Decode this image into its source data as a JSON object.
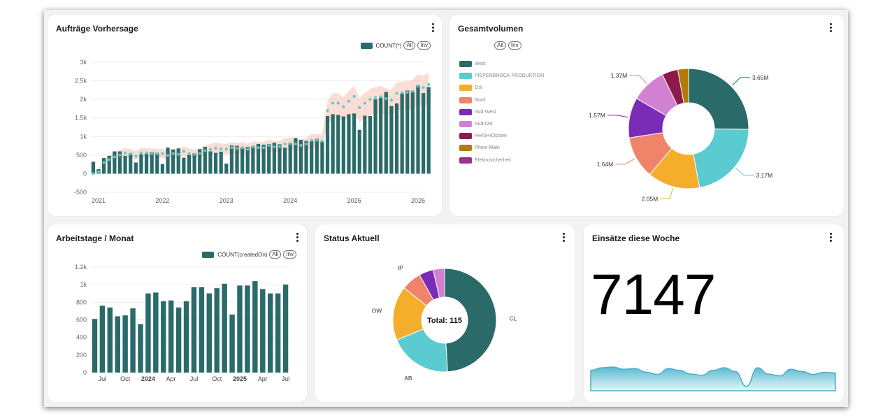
{
  "cards": {
    "forecast": {
      "title": "Aufträge Vorhersage",
      "legend": {
        "series_label": "COUNT(*)",
        "all_label": "All",
        "inv_label": "Inv"
      }
    },
    "volume": {
      "title": "Gesamtvolumen",
      "legend": {
        "all_label": "All",
        "inv_label": "Inv",
        "items": [
          {
            "label": "West",
            "color": "#2a6b6a"
          },
          {
            "label": "PIEPENBROCK PRODUKTION",
            "color": "#5acbd0"
          },
          {
            "label": "Ost",
            "color": "#f4ae2b"
          },
          {
            "label": "Nord",
            "color": "#ef846b"
          },
          {
            "label": "Süd-West",
            "color": "#7b2cb6"
          },
          {
            "label": "Süd-Ost",
            "color": "#d280d2"
          },
          {
            "label": "HH/SH/Ostsee",
            "color": "#8c1b4a"
          },
          {
            "label": "Rhein-Main",
            "color": "#b37a07"
          },
          {
            "label": "Elektrosicherheit",
            "color": "#9b2f8c"
          }
        ]
      }
    },
    "workdays": {
      "title": "Arbeitstage / Monat",
      "legend": {
        "series_label": "COUNT(createdOn)",
        "all_label": "All",
        "inv_label": "Inv"
      }
    },
    "status": {
      "title": "Status Aktuell",
      "center_label": "Total: 115"
    },
    "week": {
      "title": "Einsätze diese Woche",
      "value": "7147",
      "trend": [
        0.55,
        0.62,
        0.64,
        0.58,
        0.6,
        0.5,
        0.44,
        0.6,
        0.55,
        0.45,
        0.42,
        0.55,
        0.62,
        0.52,
        0.12,
        0.62,
        0.45,
        0.4,
        0.58,
        0.52,
        0.44,
        0.5,
        0.48
      ]
    }
  },
  "chart_data": [
    {
      "type": "bar",
      "name": "Aufträge Vorhersage",
      "ylim": [
        -500,
        3000
      ],
      "y_ticks": [
        "-500",
        "0",
        "500",
        "1k",
        "1.5k",
        "2k",
        "2.5k",
        "3k"
      ],
      "x_ticks": [
        "2021",
        "2022",
        "2023",
        "2024",
        "2025",
        "2026"
      ],
      "x_range": [
        2021,
        2026
      ],
      "series": [
        {
          "name": "COUNT(*)",
          "color": "#2a6b6a",
          "x_start": "2020-12",
          "x_step_months": 1,
          "values": [
            320,
            120,
            420,
            480,
            600,
            600,
            480,
            550,
            300,
            520,
            540,
            580,
            560,
            260,
            700,
            650,
            680,
            430,
            500,
            550,
            660,
            720,
            600,
            560,
            590,
            270,
            760,
            750,
            700,
            720,
            740,
            800,
            780,
            800,
            830,
            790,
            700,
            820,
            960,
            910,
            880,
            880,
            940,
            860,
            1550,
            1600,
            1580,
            1540,
            1600,
            1620,
            1180,
            1560,
            1550,
            2000,
            2050,
            2200,
            1820,
            1890,
            2160,
            2240,
            2210,
            2380,
            2170,
            2330
          ]
        },
        {
          "name": "Forecast",
          "color": "#5acbd0",
          "x_start": "2020-12",
          "x_step_months": 1,
          "values": [
            0,
            50,
            300,
            380,
            450,
            500,
            550,
            530,
            470,
            560,
            560,
            540,
            540,
            540,
            490,
            540,
            520,
            600,
            540,
            520,
            540,
            620,
            650,
            690,
            660,
            660,
            700,
            680,
            700,
            660,
            720,
            700,
            700,
            760,
            720,
            730,
            800,
            810,
            800,
            760,
            800,
            900,
            900,
            880,
            1700,
            1900,
            1900,
            1800,
            1950,
            2080,
            1780,
            1900,
            2000,
            2050,
            2070,
            2020,
            1980,
            2160,
            2180,
            2190,
            2220,
            2360,
            2320,
            2400
          ]
        }
      ]
    },
    {
      "type": "pie",
      "name": "Gesamtvolumen",
      "slices": [
        {
          "label": "West",
          "value": 3.65,
          "display": "3.65M",
          "color": "#2a6b6a"
        },
        {
          "label": "PIEPENBROCK PRODUKTION",
          "value": 3.17,
          "display": "3.17M",
          "color": "#5acbd0"
        },
        {
          "label": "Ost",
          "value": 2.05,
          "display": "2.05M",
          "color": "#f4ae2b"
        },
        {
          "label": "Nord",
          "value": 1.64,
          "display": "1.64M",
          "color": "#ef846b"
        },
        {
          "label": "Süd-West",
          "value": 1.57,
          "display": "1.57M",
          "color": "#7b2cb6"
        },
        {
          "label": "Süd-Ost",
          "value": 1.37,
          "display": "1.37M",
          "color": "#d280d2"
        },
        {
          "label": "HH/SH/Ostsee",
          "value": 0.62,
          "display": "",
          "color": "#8c1b4a"
        },
        {
          "label": "Rhein-Main",
          "value": 0.42,
          "display": "",
          "color": "#b37a07"
        }
      ]
    },
    {
      "type": "bar",
      "name": "Arbeitstage / Monat",
      "ylim": [
        0,
        1200
      ],
      "y_ticks": [
        "0",
        "200",
        "400",
        "600",
        "800",
        "1k",
        "1.2k"
      ],
      "x_ticks": [
        "Jul",
        "Oct",
        "2024",
        "Apr",
        "Jul",
        "Oct",
        "2025",
        "Apr",
        "Jul"
      ],
      "x_tick_positions": [
        1,
        4,
        7,
        10,
        13,
        16,
        19,
        22,
        25
      ],
      "categories": [
        "Jun 2023",
        "Jul 2023",
        "Aug 2023",
        "Sep 2023",
        "Oct 2023",
        "Nov 2023",
        "Dec 2023",
        "Jan 2024",
        "Feb 2024",
        "Mar 2024",
        "Apr 2024",
        "May 2024",
        "Jun 2024",
        "Jul 2024",
        "Aug 2024",
        "Sep 2024",
        "Oct 2024",
        "Nov 2024",
        "Dec 2024",
        "Jan 2025",
        "Feb 2025",
        "Mar 2025",
        "Apr 2025",
        "May 2025",
        "Jun 2025",
        "Jul 2025"
      ],
      "series": [
        {
          "name": "COUNT(createdOn)",
          "color": "#2a6b6a",
          "values": [
            610,
            760,
            740,
            640,
            650,
            730,
            550,
            900,
            910,
            810,
            820,
            740,
            810,
            970,
            970,
            900,
            960,
            1010,
            660,
            990,
            990,
            1040,
            950,
            900,
            900,
            1000
          ]
        }
      ]
    },
    {
      "type": "pie",
      "name": "Status Aktuell",
      "total": 115,
      "slices": [
        {
          "label": "CL",
          "value": 55,
          "color": "#2a6b6a"
        },
        {
          "label": "AB",
          "value": 22,
          "color": "#5acbd0"
        },
        {
          "label": "OW",
          "value": 19,
          "color": "#f4ae2b"
        },
        {
          "label": "IP",
          "value": 7,
          "color": "#ef846b"
        },
        {
          "label": "",
          "value": 5,
          "color": "#7b2cb6"
        },
        {
          "label": "",
          "value": 4,
          "color": "#d280d2"
        }
      ]
    }
  ]
}
